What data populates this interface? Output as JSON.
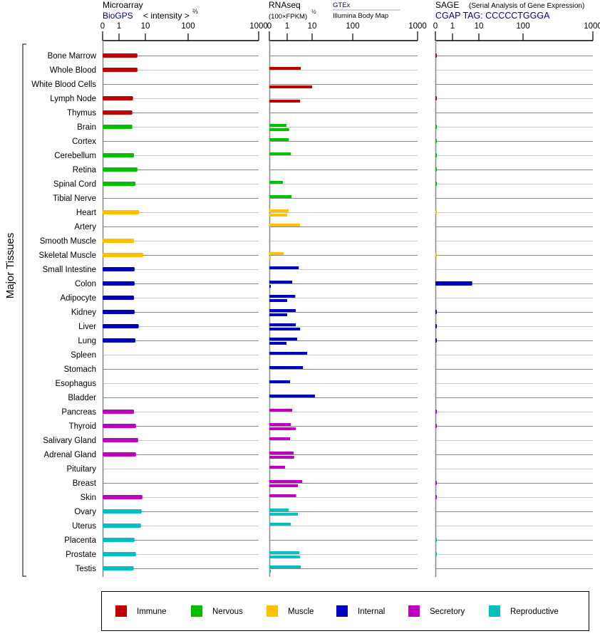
{
  "chart_data": {
    "type": "bar",
    "ylabel": "Major Tissues",
    "panels": [
      {
        "key": "microarray",
        "title": "Microarray",
        "source": "BioGPS",
        "scale_label": "< intensity >",
        "scale_exp": "⅔",
        "ticks": [
          "0",
          "1",
          "10",
          "100",
          "1000"
        ],
        "xlim": [
          0,
          1000
        ]
      },
      {
        "key": "rnaseq",
        "title": "RNAseq",
        "scale_label": "(100×FPKM)",
        "scale_exp": "½",
        "series": [
          "GTEx",
          "Illumina Body Map"
        ],
        "ticks": [
          "0",
          "1",
          "10",
          "100",
          "1000"
        ],
        "xlim": [
          0,
          1000
        ]
      },
      {
        "key": "sage",
        "title": "SAGE",
        "subtitle": "(Serial Analysis of Gene Expression)",
        "tag": "CGAP TAG: CCCCCTGGGA",
        "ticks": [
          "0",
          "1",
          "10",
          "100",
          "1000"
        ],
        "xlim": [
          0,
          1000
        ]
      }
    ],
    "groups": [
      {
        "name": "Immune",
        "color": "#c00000"
      },
      {
        "name": "Nervous",
        "color": "#00c000"
      },
      {
        "name": "Muscle",
        "color": "#ffc000"
      },
      {
        "name": "Internal",
        "color": "#0000c0"
      },
      {
        "name": "Secretory",
        "color": "#c000c0"
      },
      {
        "name": "Reproductive",
        "color": "#00c0c0"
      }
    ],
    "tissues": [
      {
        "name": "Bone Marrow",
        "group": 0,
        "microarray": 5.0,
        "gtex": null,
        "illumina": null,
        "sage": 0.05
      },
      {
        "name": "Whole Blood",
        "group": 0,
        "microarray": 5.0,
        "gtex": 3.5,
        "illumina": null,
        "sage": null
      },
      {
        "name": "White Blood Cells",
        "group": 0,
        "microarray": null,
        "gtex": null,
        "illumina": 10,
        "sage": null
      },
      {
        "name": "Lymph Node",
        "group": 0,
        "microarray": 3.4,
        "gtex": null,
        "illumina": 3.3,
        "sage": 0.05
      },
      {
        "name": "Thymus",
        "group": 0,
        "microarray": 3.2,
        "gtex": null,
        "illumina": null,
        "sage": null
      },
      {
        "name": "Brain",
        "group": 1,
        "microarray": 3.2,
        "gtex": 0.96,
        "illumina": 1.2,
        "sage": 0.05
      },
      {
        "name": "Cortex",
        "group": 1,
        "microarray": null,
        "gtex": 1.14,
        "illumina": null,
        "sage": 0.05
      },
      {
        "name": "Cerebellum",
        "group": 1,
        "microarray": 3.7,
        "gtex": 1.4,
        "illumina": null,
        "sage": 0.05
      },
      {
        "name": "Retina",
        "group": 1,
        "microarray": 5.0,
        "gtex": null,
        "illumina": null,
        "sage": 0.05
      },
      {
        "name": "Spinal Cord",
        "group": 1,
        "microarray": 4.2,
        "gtex": 0.76,
        "illumina": null,
        "sage": 0.05
      },
      {
        "name": "Tibial Nerve",
        "group": 1,
        "microarray": null,
        "gtex": 1.5,
        "illumina": null,
        "sage": null
      },
      {
        "name": "Heart",
        "group": 2,
        "microarray": 5.7,
        "gtex": 1.14,
        "illumina": 1.0,
        "sage": 0.05
      },
      {
        "name": "Artery",
        "group": 2,
        "microarray": null,
        "gtex": 3.3,
        "illumina": null,
        "sage": null
      },
      {
        "name": "Smooth Muscle",
        "group": 2,
        "microarray": 3.7,
        "gtex": null,
        "illumina": null,
        "sage": null
      },
      {
        "name": "Skeletal Muscle",
        "group": 2,
        "microarray": 8.3,
        "gtex": 0.8,
        "illumina": 0.04,
        "sage": 0.05
      },
      {
        "name": "Small Intestine",
        "group": 3,
        "microarray": 3.9,
        "gtex": 2.9,
        "illumina": null,
        "sage": null
      },
      {
        "name": "Colon",
        "group": 3,
        "microarray": 3.9,
        "gtex": 1.6,
        "illumina": 0.04,
        "sage": 5.6
      },
      {
        "name": "Adipocyte",
        "group": 3,
        "microarray": 3.7,
        "gtex": 2.1,
        "illumina": 1.0,
        "sage": null
      },
      {
        "name": "Kidney",
        "group": 3,
        "microarray": 3.9,
        "gtex": 2.2,
        "illumina": 1.0,
        "sage": 0.05
      },
      {
        "name": "Liver",
        "group": 3,
        "microarray": 5.6,
        "gtex": 2.2,
        "illumina": 3.3,
        "sage": 0.05
      },
      {
        "name": "Lung",
        "group": 3,
        "microarray": 4.2,
        "gtex": 2.5,
        "illumina": 0.96,
        "sage": 0.05
      },
      {
        "name": "Spleen",
        "group": 3,
        "microarray": null,
        "gtex": 6.3,
        "illumina": null,
        "sage": null
      },
      {
        "name": "Stomach",
        "group": 3,
        "microarray": null,
        "gtex": 4.3,
        "illumina": null,
        "sage": null
      },
      {
        "name": "Esophagus",
        "group": 3,
        "microarray": null,
        "gtex": 1.3,
        "illumina": null,
        "sage": null
      },
      {
        "name": "Bladder",
        "group": 3,
        "microarray": null,
        "gtex": 11.7,
        "illumina": null,
        "sage": null
      },
      {
        "name": "Pancreas",
        "group": 4,
        "microarray": 3.7,
        "gtex": 1.6,
        "illumina": null,
        "sage": 0.05
      },
      {
        "name": "Thyroid",
        "group": 4,
        "microarray": 4.4,
        "gtex": 1.4,
        "illumina": 2.2,
        "sage": 0.05
      },
      {
        "name": "Salivary Gland",
        "group": 4,
        "microarray": 5.3,
        "gtex": 1.3,
        "illumina": null,
        "sage": null
      },
      {
        "name": "Adrenal Gland",
        "group": 4,
        "microarray": 4.4,
        "gtex": 1.8,
        "illumina": 1.9,
        "sage": null
      },
      {
        "name": "Pituitary",
        "group": 4,
        "microarray": null,
        "gtex": 0.88,
        "illumina": null,
        "sage": null
      },
      {
        "name": "Breast",
        "group": 4,
        "microarray": null,
        "gtex": 4.0,
        "illumina": 2.7,
        "sage": 0.05
      },
      {
        "name": "Skin",
        "group": 4,
        "microarray": 7.7,
        "gtex": 2.3,
        "illumina": null,
        "sage": 0.05
      },
      {
        "name": "Ovary",
        "group": 5,
        "microarray": 7.2,
        "gtex": 1.14,
        "illumina": 2.7,
        "sage": null
      },
      {
        "name": "Uterus",
        "group": 5,
        "microarray": 6.8,
        "gtex": 1.4,
        "illumina": null,
        "sage": null
      },
      {
        "name": "Placenta",
        "group": 5,
        "microarray": 3.9,
        "gtex": null,
        "illumina": null,
        "sage": 0.05
      },
      {
        "name": "Prostate",
        "group": 5,
        "microarray": 4.4,
        "gtex": 3.1,
        "illumina": 3.3,
        "sage": 0.05
      },
      {
        "name": "Testis",
        "group": 5,
        "microarray": 3.6,
        "gtex": 3.5,
        "illumina": 0.04,
        "sage": null
      }
    ]
  }
}
